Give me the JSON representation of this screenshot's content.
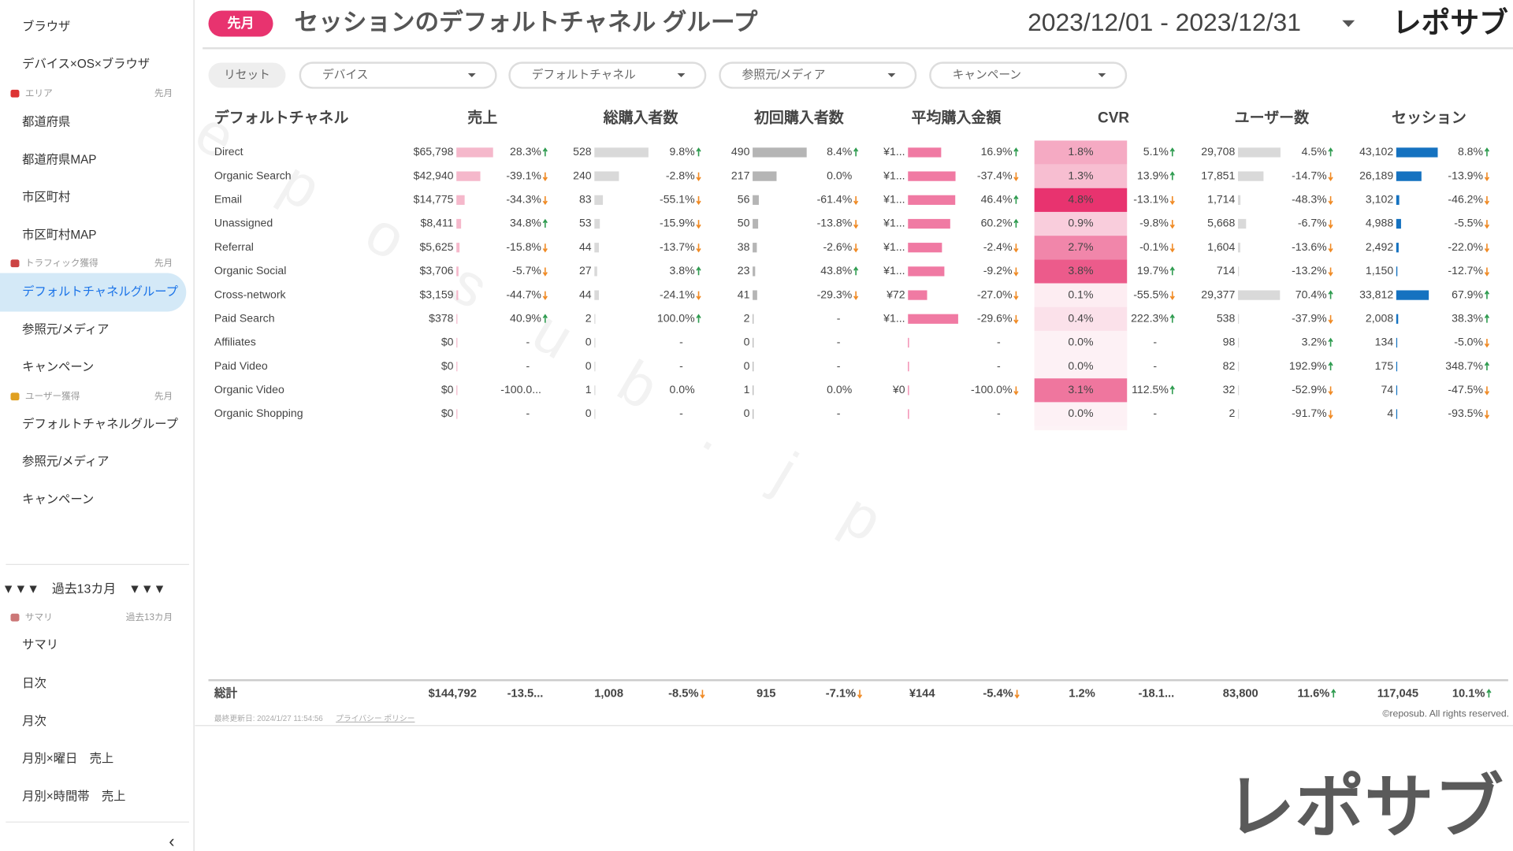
{
  "watermark": "reposub.jp",
  "sidebar": {
    "entries": [
      {
        "label": "ブラウザ"
      },
      {
        "label": "デバイス×OS×ブラウザ"
      },
      {
        "section": "エリア",
        "period": "先月"
      },
      {
        "label": "都道府県"
      },
      {
        "label": "都道府県MAP"
      },
      {
        "label": "市区町村"
      },
      {
        "label": "市区町村MAP"
      },
      {
        "section": "トラフィック獲得",
        "period": "先月"
      },
      {
        "label": "デフォルトチャネルグループ",
        "active": true
      },
      {
        "label": "参照元/メディア"
      },
      {
        "label": "キャンペーン"
      },
      {
        "section": "ユーザー獲得",
        "period": "先月"
      },
      {
        "label": "デフォルトチャネルグループ"
      },
      {
        "label": "参照元/メディア"
      },
      {
        "label": "キャンペーン"
      },
      {
        "divider": "▼▼▼　過去13カ月　▼▼▼"
      },
      {
        "section": "サマリ",
        "period": "過去13カ月"
      },
      {
        "label": "サマリ"
      },
      {
        "label": "日次"
      },
      {
        "label": "月次"
      },
      {
        "label": "月別×曜日　売上"
      },
      {
        "label": "月別×時間帯　売上"
      }
    ],
    "collapse": "‹"
  },
  "header": {
    "badge": "先月",
    "title": "セッションのデフォルトチャネル グループ",
    "date_range": "2023/12/01 - 2023/12/31",
    "logo": "レポサブ"
  },
  "filters": {
    "reset": "リセット",
    "dropdowns": [
      "デバイス",
      "デフォルトチャネル",
      "参照元/メディア",
      "キャンペーン"
    ]
  },
  "table": {
    "columns": [
      "デフォルトチャネル",
      "売上",
      "総購入者数",
      "初回購入者数",
      "平均購入金額",
      "CVR",
      "ユーザー数",
      "セッション"
    ],
    "rows": [
      {
        "channel": "Direct",
        "cells": [
          [
            "$65,798",
            "28.3%"
          ],
          [
            "528",
            "9.8%"
          ],
          [
            "490",
            "8.4%"
          ],
          [
            {
              "value": 125,
              "label": "¥1..."
            },
            "16.9%"
          ],
          [
            "1.8%",
            "5.1%"
          ],
          [
            "29,708",
            "4.5%"
          ],
          [
            "43,102",
            "8.8%"
          ]
        ]
      },
      {
        "channel": "Organic Search",
        "cells": [
          [
            "$42,940",
            "-39.1%"
          ],
          [
            "240",
            "-2.8%"
          ],
          [
            "217",
            "0.0%"
          ],
          [
            {
              "value": 179,
              "label": "¥1..."
            },
            "-37.4%"
          ],
          [
            "1.3%",
            "13.9%"
          ],
          [
            "17,851",
            "-14.7%"
          ],
          [
            "26,189",
            "-13.9%"
          ]
        ]
      },
      {
        "channel": "Email",
        "cells": [
          [
            "$14,775",
            "-34.3%"
          ],
          [
            "83",
            "-55.1%"
          ],
          [
            "56",
            "-61.4%"
          ],
          [
            {
              "value": 178,
              "label": "¥1..."
            },
            "46.4%"
          ],
          [
            "4.8%",
            "-13.1%"
          ],
          [
            "1,714",
            "-48.3%"
          ],
          [
            "3,102",
            "-46.2%"
          ]
        ]
      },
      {
        "channel": "Unassigned",
        "cells": [
          [
            "$8,411",
            "34.8%"
          ],
          [
            "53",
            "-15.9%"
          ],
          [
            "50",
            "-13.8%"
          ],
          [
            {
              "value": 159,
              "label": "¥1..."
            },
            "60.2%"
          ],
          [
            "0.9%",
            "-9.8%"
          ],
          [
            "5,668",
            "-6.7%"
          ],
          [
            "4,988",
            "-5.5%"
          ]
        ]
      },
      {
        "channel": "Referral",
        "cells": [
          [
            "$5,625",
            "-15.8%"
          ],
          [
            "44",
            "-13.7%"
          ],
          [
            "38",
            "-2.6%"
          ],
          [
            {
              "value": 128,
              "label": "¥1..."
            },
            "-2.4%"
          ],
          [
            "2.7%",
            "-0.1%"
          ],
          [
            "1,604",
            "-13.6%"
          ],
          [
            "2,492",
            "-22.0%"
          ]
        ]
      },
      {
        "channel": "Organic Social",
        "cells": [
          [
            "$3,706",
            "-5.7%"
          ],
          [
            "27",
            "3.8%"
          ],
          [
            "23",
            "43.8%"
          ],
          [
            {
              "value": 137,
              "label": "¥1..."
            },
            "-9.2%"
          ],
          [
            "3.8%",
            "19.7%"
          ],
          [
            "714",
            "-13.2%"
          ],
          [
            "1,150",
            "-12.7%"
          ]
        ]
      },
      {
        "channel": "Cross-network",
        "cells": [
          [
            "$3,159",
            "-44.7%"
          ],
          [
            "44",
            "-24.1%"
          ],
          [
            "41",
            "-29.3%"
          ],
          [
            {
              "value": 72,
              "label": "¥72"
            },
            "-27.0%"
          ],
          [
            "0.1%",
            "-55.5%"
          ],
          [
            "29,377",
            "70.4%"
          ],
          [
            "33,812",
            "67.9%"
          ]
        ]
      },
      {
        "channel": "Paid Search",
        "cells": [
          [
            "$378",
            "40.9%"
          ],
          [
            "2",
            "100.0%"
          ],
          [
            "2",
            "-"
          ],
          [
            {
              "value": 189,
              "label": "¥1..."
            },
            "-29.6%"
          ],
          [
            "0.4%",
            "222.3%"
          ],
          [
            "538",
            "-37.9%"
          ],
          [
            "2,008",
            "38.3%"
          ]
        ]
      },
      {
        "channel": "Affiliates",
        "cells": [
          [
            "$0",
            "-"
          ],
          [
            "0",
            "-"
          ],
          [
            "0",
            "-"
          ],
          [
            null,
            "-"
          ],
          [
            "0.0%",
            "-"
          ],
          [
            "98",
            "3.2%"
          ],
          [
            "134",
            "-5.0%"
          ]
        ]
      },
      {
        "channel": "Paid Video",
        "cells": [
          [
            "$0",
            "-"
          ],
          [
            "0",
            "-"
          ],
          [
            "0",
            "-"
          ],
          [
            null,
            "-"
          ],
          [
            "0.0%",
            "-"
          ],
          [
            "82",
            "192.9%"
          ],
          [
            "175",
            "348.7%"
          ]
        ]
      },
      {
        "channel": "Organic Video",
        "cells": [
          [
            "$0",
            "-100.0..."
          ],
          [
            "1",
            "0.0%"
          ],
          [
            "1",
            "0.0%"
          ],
          [
            {
              "value": 0,
              "label": "¥0"
            },
            "-100.0%"
          ],
          [
            "3.1%",
            "112.5%"
          ],
          [
            "32",
            "-52.9%"
          ],
          [
            "74",
            "-47.5%"
          ]
        ]
      },
      {
        "channel": "Organic Shopping",
        "cells": [
          [
            "$0",
            "-"
          ],
          [
            "0",
            "-"
          ],
          [
            "0",
            "-"
          ],
          [
            null,
            "-"
          ],
          [
            "0.0%",
            "-"
          ],
          [
            "2",
            "-91.7%"
          ],
          [
            "4",
            "-93.5%"
          ]
        ]
      }
    ],
    "total": {
      "label": "総計",
      "cells": [
        [
          "$144,792",
          "-13.5..."
        ],
        [
          "1,008",
          "-8.5%"
        ],
        [
          "915",
          "-7.1%"
        ],
        [
          "¥144",
          "-5.4%"
        ],
        [
          "1.2%",
          "-18.1..."
        ],
        [
          "83,800",
          "11.6%"
        ],
        [
          "117,045",
          "10.1%"
        ]
      ]
    }
  },
  "footer": {
    "updated": "最終更新日: 2024/1/27 11:54:56",
    "privacy": "プライバシー ポリシー",
    "copyright": "©reposub. All rights reserved."
  },
  "brand": "レポサブ"
}
